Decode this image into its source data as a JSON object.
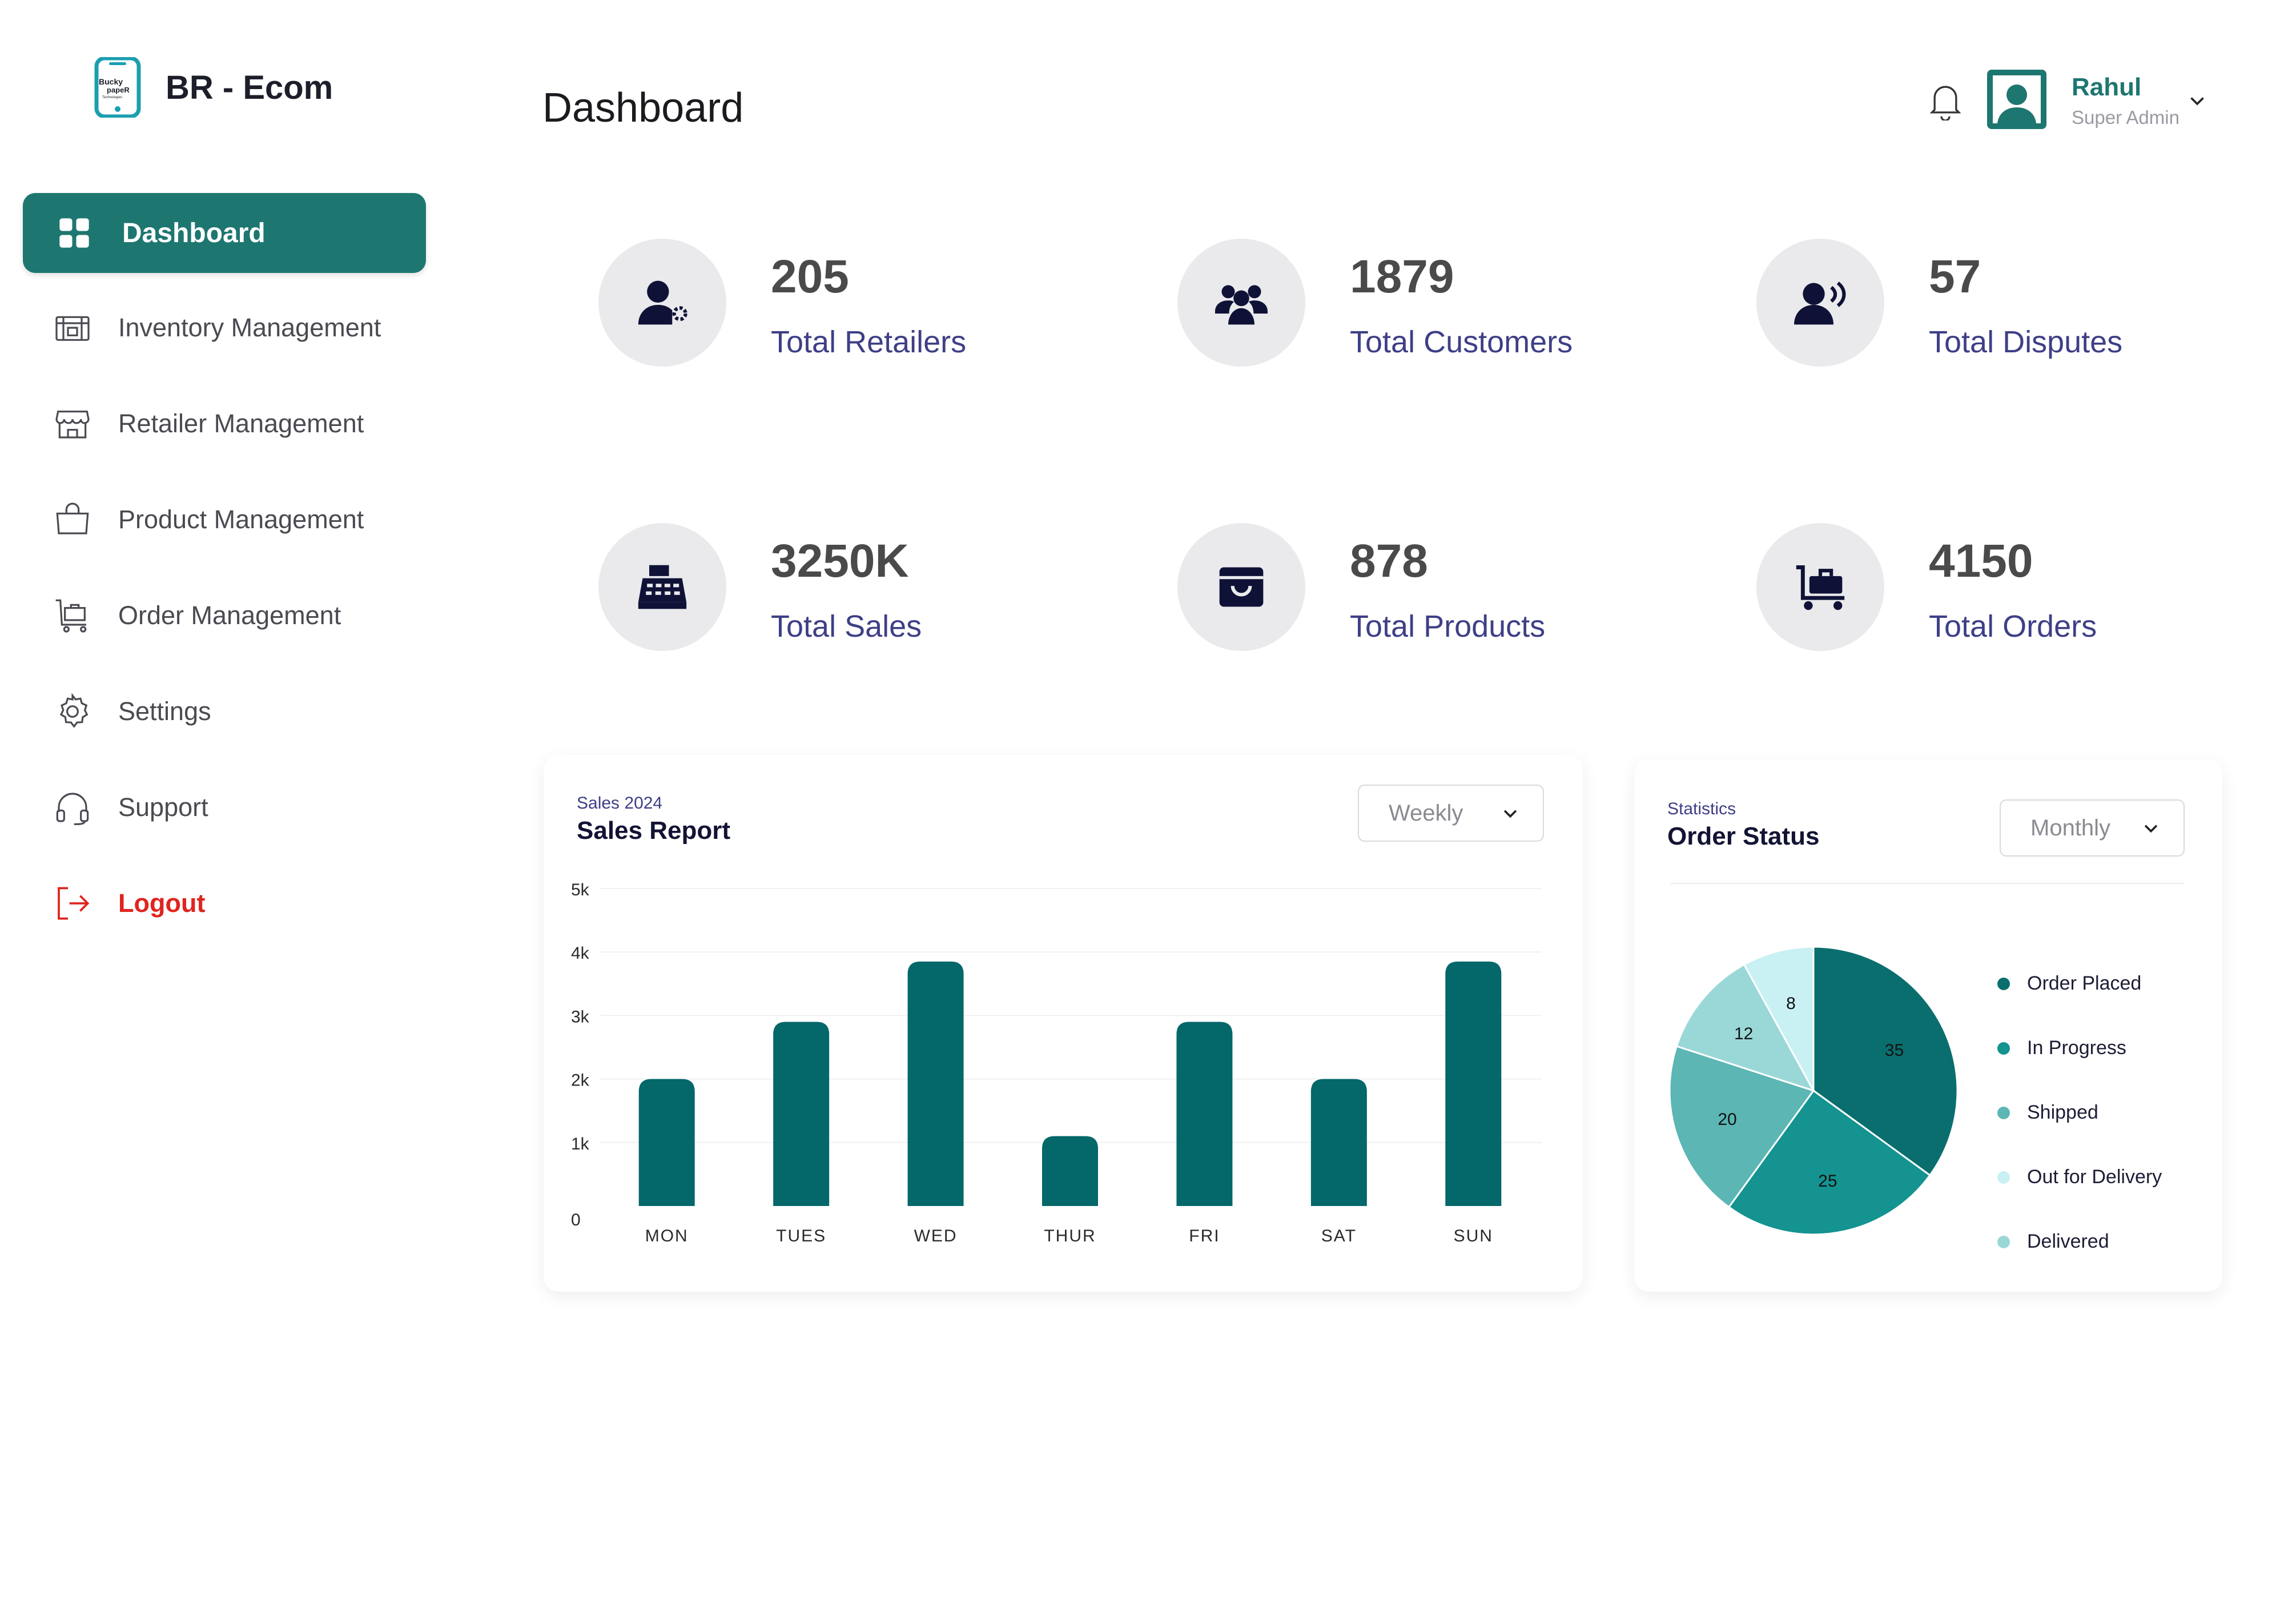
{
  "brand": {
    "name": "BR - Ecom",
    "logo_text": "Bucky papeR Technologies"
  },
  "sidebar": {
    "items": [
      {
        "label": "Dashboard",
        "icon": "grid-icon",
        "active": true
      },
      {
        "label": "Inventory Management",
        "icon": "inventory-icon"
      },
      {
        "label": "Retailer Management",
        "icon": "store-icon"
      },
      {
        "label": "Product Management",
        "icon": "bag-icon"
      },
      {
        "label": "Order Management",
        "icon": "cart-icon"
      },
      {
        "label": "Settings",
        "icon": "gear-icon"
      },
      {
        "label": "Support",
        "icon": "headset-icon"
      },
      {
        "label": "Logout",
        "icon": "logout-icon"
      }
    ]
  },
  "header": {
    "title": "Dashboard",
    "user": {
      "name": "Rahul",
      "role": "Super Admin"
    }
  },
  "stats": [
    {
      "value": "205",
      "label": "Total Retailers",
      "icon": "retailer-icon"
    },
    {
      "value": "1879",
      "label": "Total Customers",
      "icon": "customers-icon"
    },
    {
      "value": "57",
      "label": "Total Disputes",
      "icon": "dispute-icon"
    },
    {
      "value": "3250K",
      "label": "Total Sales",
      "icon": "register-icon"
    },
    {
      "value": "878",
      "label": "Total Products",
      "icon": "shopping-bag-icon"
    },
    {
      "value": "4150",
      "label": "Total Orders",
      "icon": "luggage-cart-icon"
    }
  ],
  "sales_report": {
    "subtitle": "Sales 2024",
    "title": "Sales Report",
    "period": "Weekly"
  },
  "order_status": {
    "subtitle": "Statistics",
    "title": "Order Status",
    "period": "Monthly"
  },
  "colors": {
    "primary": "#1e7670",
    "bar": "#04676a",
    "pie": [
      "#0a6e6e",
      "#149390",
      "#5bb6b4",
      "#9ad8d8",
      "#c9f0f3"
    ],
    "legend": [
      "#0a6e6e",
      "#149390",
      "#5bb6b4",
      "#c9f0f3",
      "#9ad8d8"
    ]
  },
  "chart_data": [
    {
      "type": "bar",
      "title": "Sales Report",
      "categories": [
        "MON",
        "TUES",
        "WED",
        "THUR",
        "FRI",
        "SAT",
        "SUN"
      ],
      "values": [
        2000,
        2900,
        3850,
        1100,
        2900,
        2000,
        3850
      ],
      "ylim": [
        0,
        5000
      ],
      "yticks": [
        0,
        1000,
        2000,
        3000,
        4000,
        5000
      ],
      "ytick_labels": [
        "0",
        "1k",
        "2k",
        "3k",
        "4k",
        "5k"
      ],
      "xlabel": "",
      "ylabel": "",
      "grid": true
    },
    {
      "type": "pie",
      "title": "Order Status",
      "slices": [
        {
          "label": "Order Placed",
          "value": 35
        },
        {
          "label": "In Progress",
          "value": 25
        },
        {
          "label": "Shipped",
          "value": 20
        },
        {
          "label": "Delivered",
          "value": 12
        },
        {
          "label": "Out for Delivery",
          "value": 8
        }
      ],
      "legend": [
        "Order Placed",
        "In Progress",
        "Shipped",
        "Out for Delivery",
        "Delivered"
      ]
    }
  ]
}
